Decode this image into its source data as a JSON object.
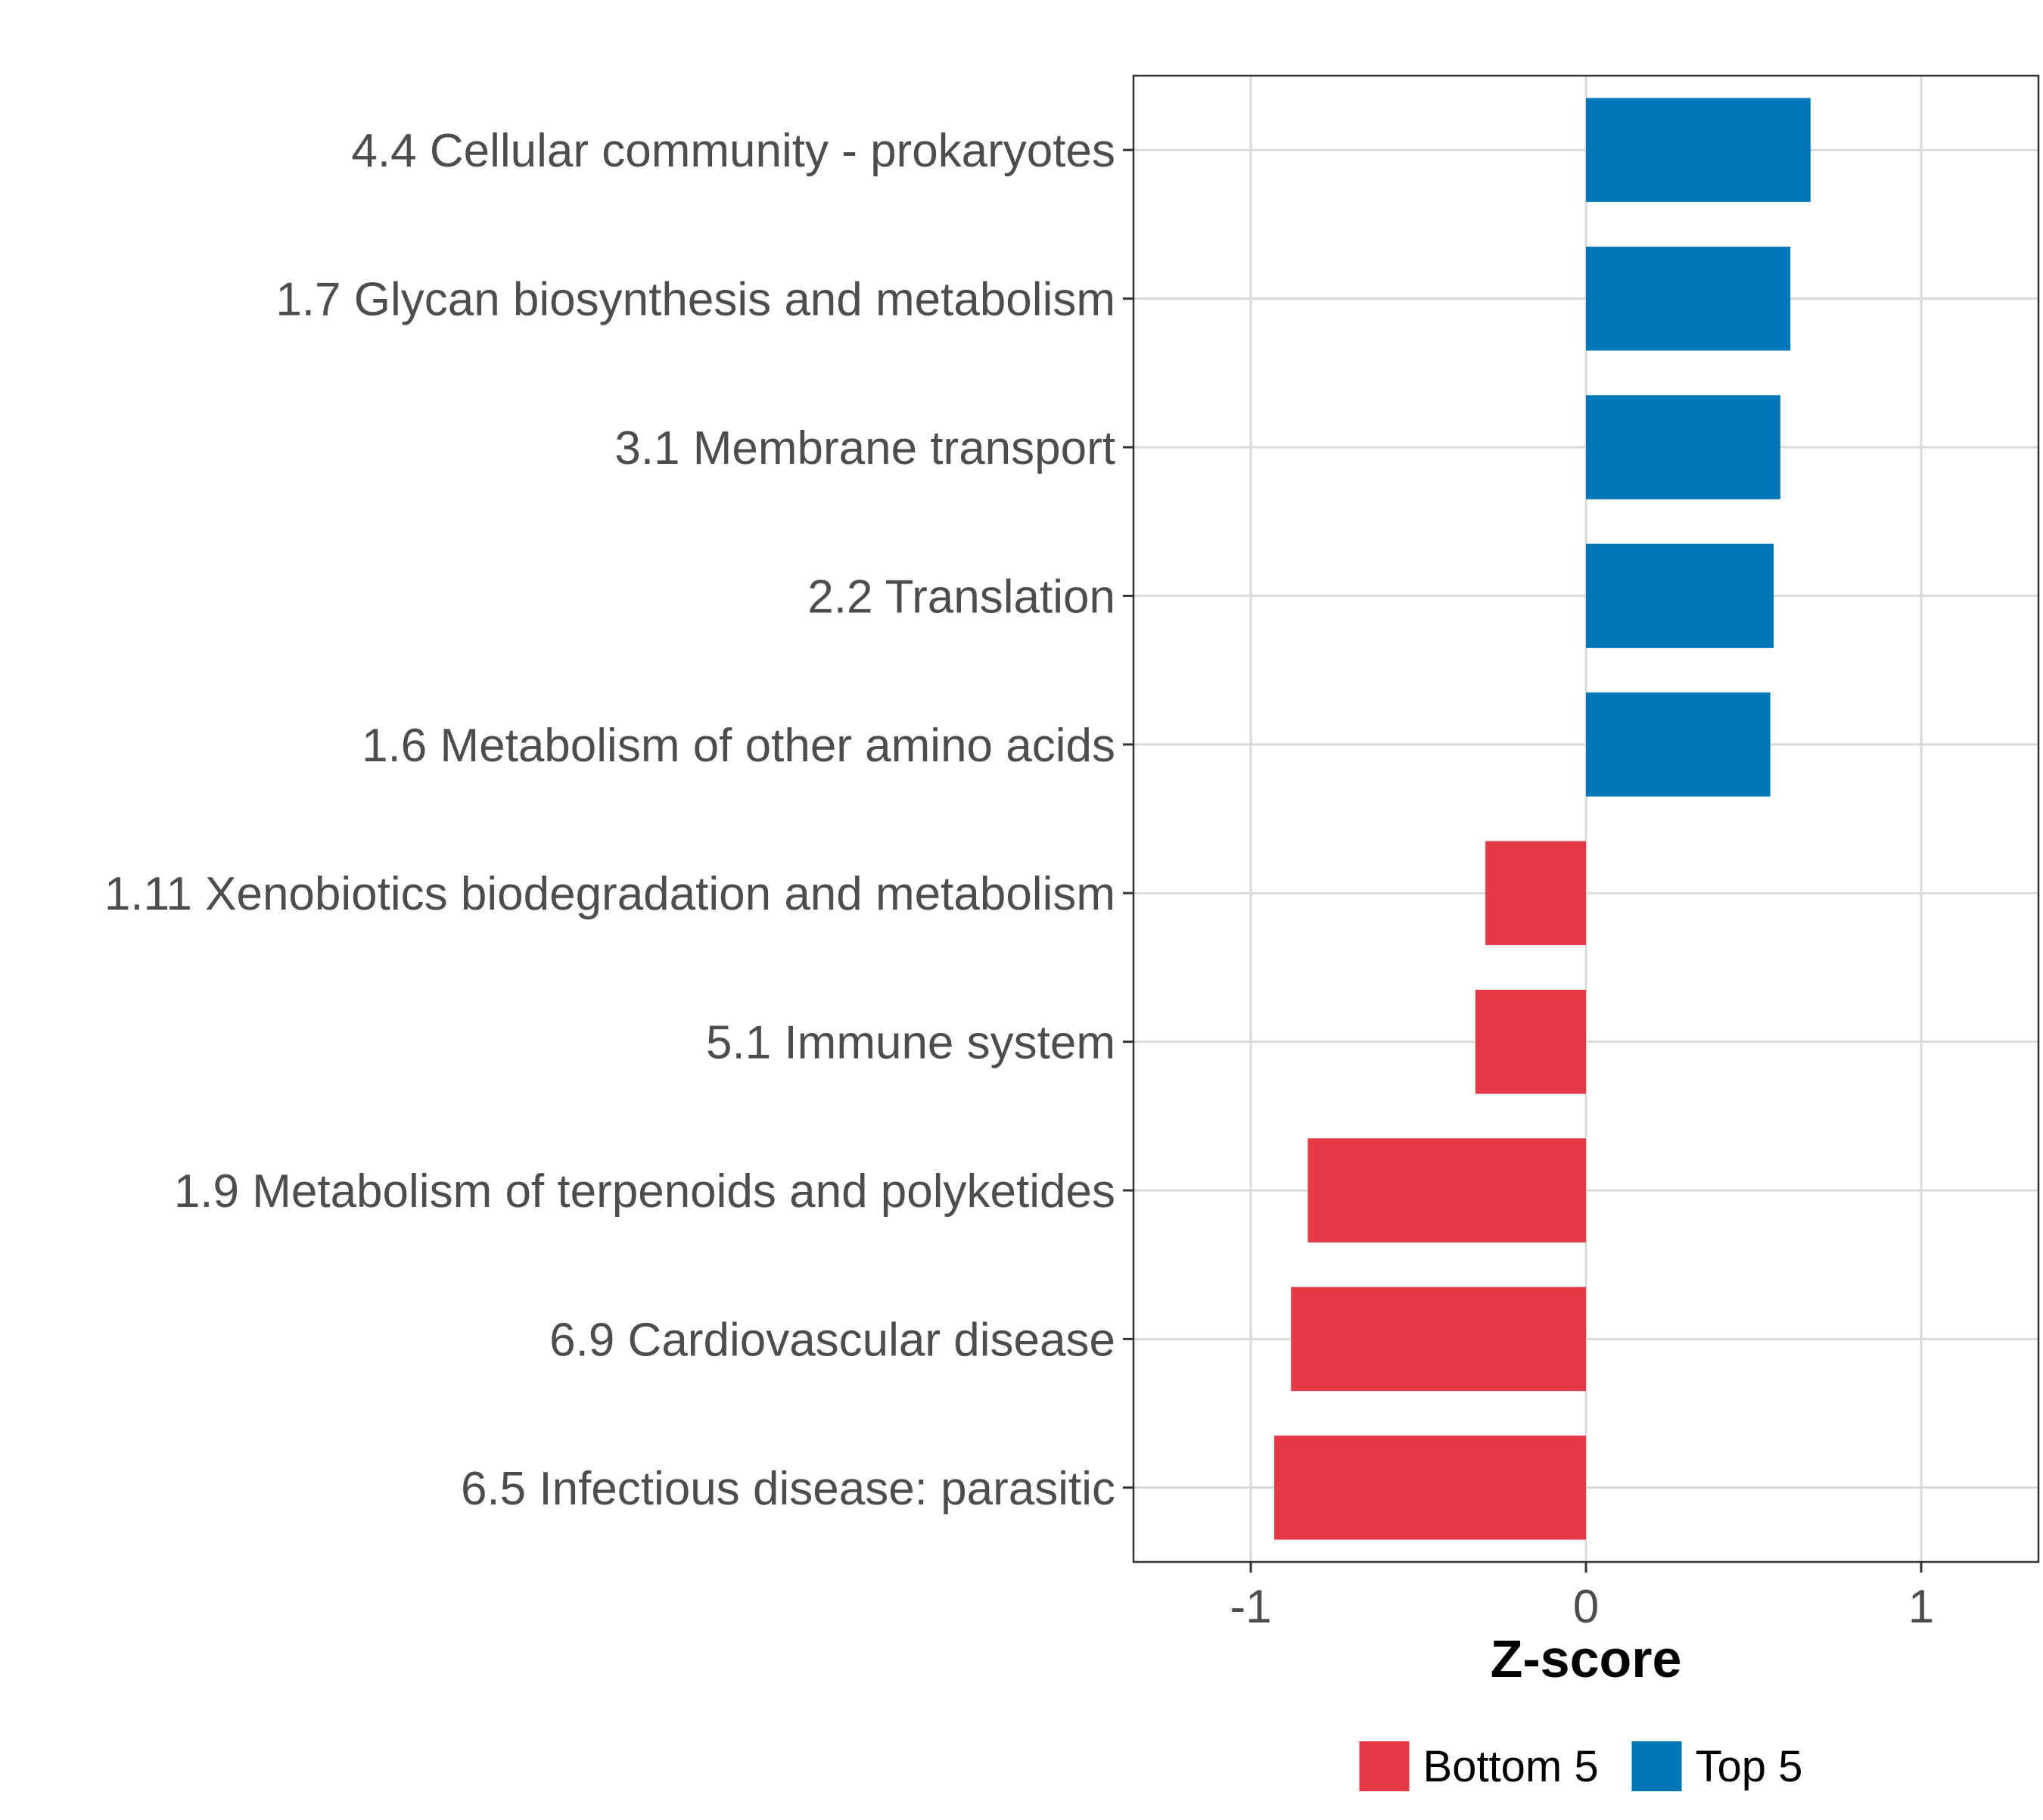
{
  "chart_data": {
    "type": "bar",
    "orientation": "horizontal",
    "title": "",
    "xlabel": "Z-score",
    "ylabel": "",
    "xlim": [
      -1.35,
      1.35
    ],
    "xticks": [
      -1,
      0,
      1
    ],
    "xtick_labels": [
      "-1",
      "0",
      "1"
    ],
    "grid": true,
    "legend_position": "bottom",
    "categories": [
      "4.4 Cellular community - prokaryotes",
      "1.7 Glycan biosynthesis and metabolism",
      "3.1 Membrane transport",
      "2.2 Translation",
      "1.6 Metabolism of other amino acids",
      "1.11 Xenobiotics biodegradation and metabolism",
      "5.1 Immune system",
      "1.9 Metabolism of terpenoids and polyketides",
      "6.9 Cardiovascular disease",
      "6.5 Infectious disease: parasitic"
    ],
    "values": [
      0.67,
      0.61,
      0.58,
      0.56,
      0.55,
      -0.3,
      -0.33,
      -0.83,
      -0.88,
      -0.93
    ],
    "groups": [
      "Top 5",
      "Top 5",
      "Top 5",
      "Top 5",
      "Top 5",
      "Bottom 5",
      "Bottom 5",
      "Bottom 5",
      "Bottom 5",
      "Bottom 5"
    ],
    "legend": [
      {
        "label": "Bottom 5",
        "color": "#E63946"
      },
      {
        "label": "Top 5",
        "color": "#0077B6"
      }
    ]
  }
}
